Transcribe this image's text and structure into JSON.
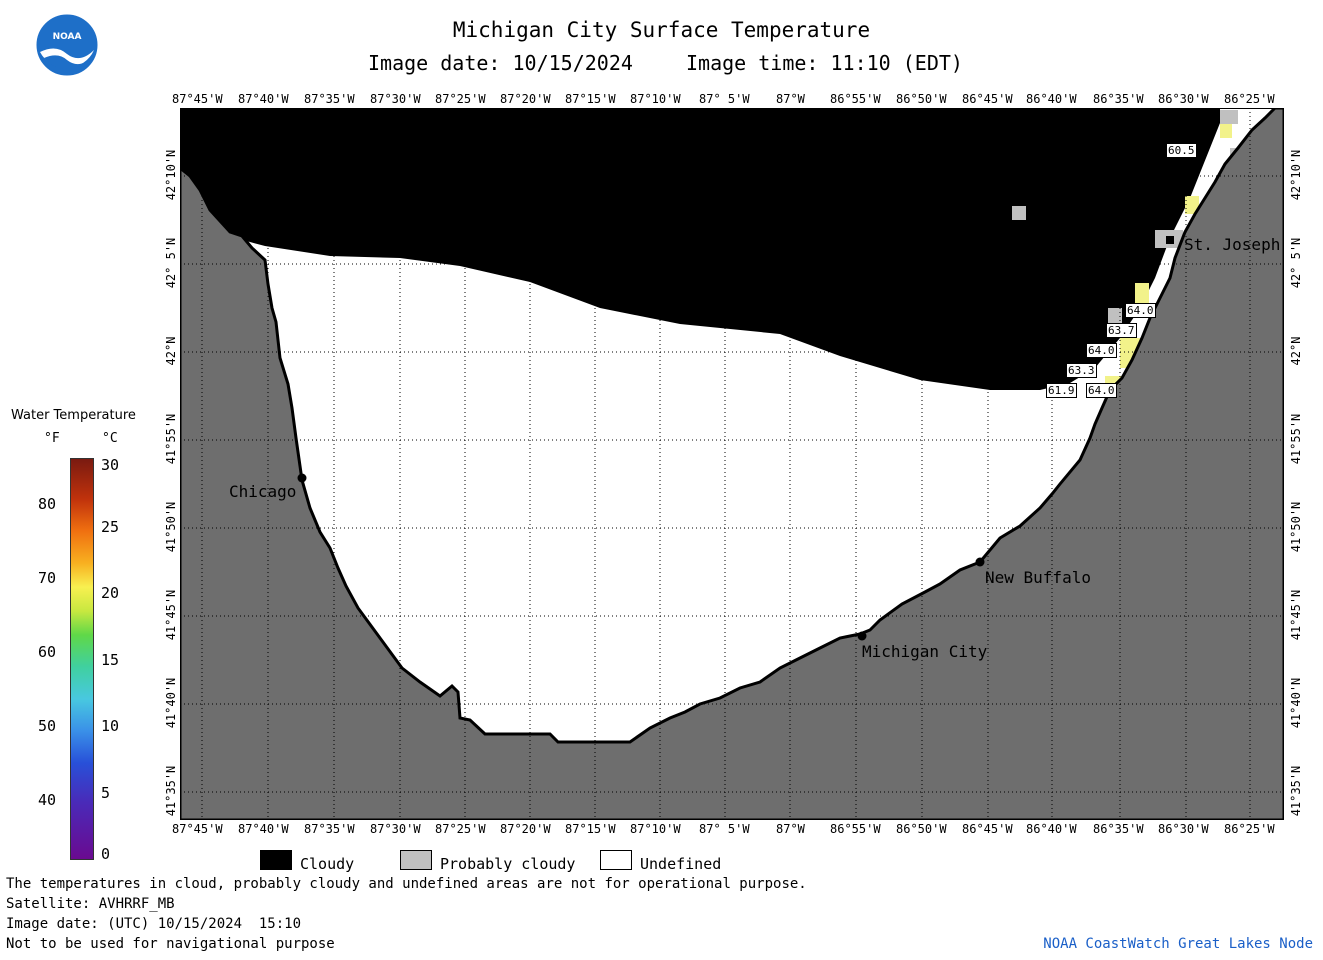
{
  "header": {
    "title": "Michigan City Surface Temperature",
    "image_date": "Image date: 10/15/2024",
    "image_time": "Image time: 11:10 (EDT)",
    "logo_text": "NOAA"
  },
  "map": {
    "lon_labels": [
      "87°45'W",
      "87°40'W",
      "87°35'W",
      "87°30'W",
      "87°25'W",
      "87°20'W",
      "87°15'W",
      "87°10'W",
      "87° 5'W",
      "87°W",
      "86°55'W",
      "86°50'W",
      "86°45'W",
      "86°40'W",
      "86°35'W",
      "86°30'W",
      "86°25'W"
    ],
    "lat_labels": [
      "42°10'N",
      "42° 5'N",
      "42°N",
      "41°55'N",
      "41°50'N",
      "41°45'N",
      "41°40'N",
      "41°35'N"
    ],
    "cities": [
      {
        "name": "Chicago"
      },
      {
        "name": "Michigan City"
      },
      {
        "name": "New Buffalo"
      },
      {
        "name": "St. Joseph"
      }
    ],
    "temperature_labels": [
      "60.5",
      "64.0",
      "63.7",
      "64.0",
      "63.3",
      "61.9",
      "64.0"
    ],
    "colors": {
      "cloudy": "#000000",
      "probably_cloudy": "#c0c0c0",
      "undefined": "#ffffff",
      "land": "#6e6e6e",
      "warm_water": "#f2f28a"
    }
  },
  "colorbar": {
    "title": "Water Temperature",
    "unit_f": "°F",
    "unit_c": "°C",
    "f_ticks": [
      "80",
      "70",
      "60",
      "50",
      "40"
    ],
    "c_ticks": [
      "30",
      "25",
      "20",
      "15",
      "10",
      "5",
      "0"
    ]
  },
  "legend": [
    {
      "label": "Cloudy",
      "color": "#000000"
    },
    {
      "label": "Probably cloudy",
      "color": "#c0c0c0"
    },
    {
      "label": "Undefined",
      "color": "#ffffff"
    }
  ],
  "footer": {
    "line1": "The temperatures in cloud, probably cloudy and undefined areas are not for operational purpose.",
    "line2": "Satellite: AVHRRF_MB",
    "line3": "Image date: (UTC) 10/15/2024  15:10",
    "line4": "Not to be used for navigational purpose",
    "credit": "NOAA CoastWatch Great Lakes Node"
  }
}
